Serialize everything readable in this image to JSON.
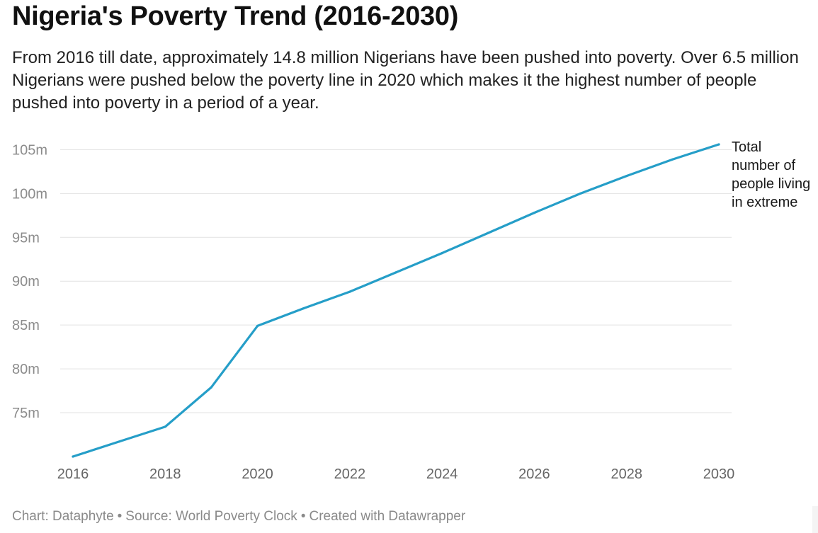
{
  "header": {
    "title": "Nigeria's Poverty Trend (2016-2030)",
    "subtitle": "From 2016 till date, approximately 14.8 million Nigerians have been pushed into poverty. Over 6.5 million Nigerians were pushed below the poverty line in 2020 which makes it the highest number of people pushed into poverty in a period of a year."
  },
  "footer": {
    "chart_credit": "Chart: Dataphyte",
    "source": "Source: World Poverty Clock",
    "created_with": "Created with Datawrapper",
    "separator": "•"
  },
  "colors": {
    "line": "#259ec8",
    "grid": "#e2e2e2",
    "tick_text": "#8c8c8c"
  },
  "chart_data": {
    "type": "line",
    "title": "Nigeria's Poverty Trend (2016-2030)",
    "xlabel": "",
    "ylabel": "",
    "x_ticks": [
      "2016",
      "2018",
      "2020",
      "2022",
      "2024",
      "2026",
      "2028",
      "2030"
    ],
    "y_ticks": [
      {
        "value": 75,
        "label": "75m"
      },
      {
        "value": 80,
        "label": "80m"
      },
      {
        "value": 85,
        "label": "85m"
      },
      {
        "value": 90,
        "label": "90m"
      },
      {
        "value": 95,
        "label": "95m"
      },
      {
        "value": 100,
        "label": "100m"
      },
      {
        "value": 105,
        "label": "105m"
      }
    ],
    "xlim": [
      2016,
      2030
    ],
    "ylim": [
      70,
      105.6
    ],
    "grid": true,
    "series": [
      {
        "name": "Total number of people living in extreme",
        "label": "Total number of people living in extreme",
        "x": [
          2016,
          2017,
          2018,
          2019,
          2020,
          2021,
          2022,
          2023,
          2024,
          2025,
          2026,
          2027,
          2028,
          2029,
          2030
        ],
        "values": [
          70.0,
          71.7,
          73.4,
          77.9,
          84.9,
          86.9,
          88.8,
          91.0,
          93.2,
          95.5,
          97.8,
          100.0,
          102.0,
          103.9,
          105.6
        ]
      }
    ]
  }
}
